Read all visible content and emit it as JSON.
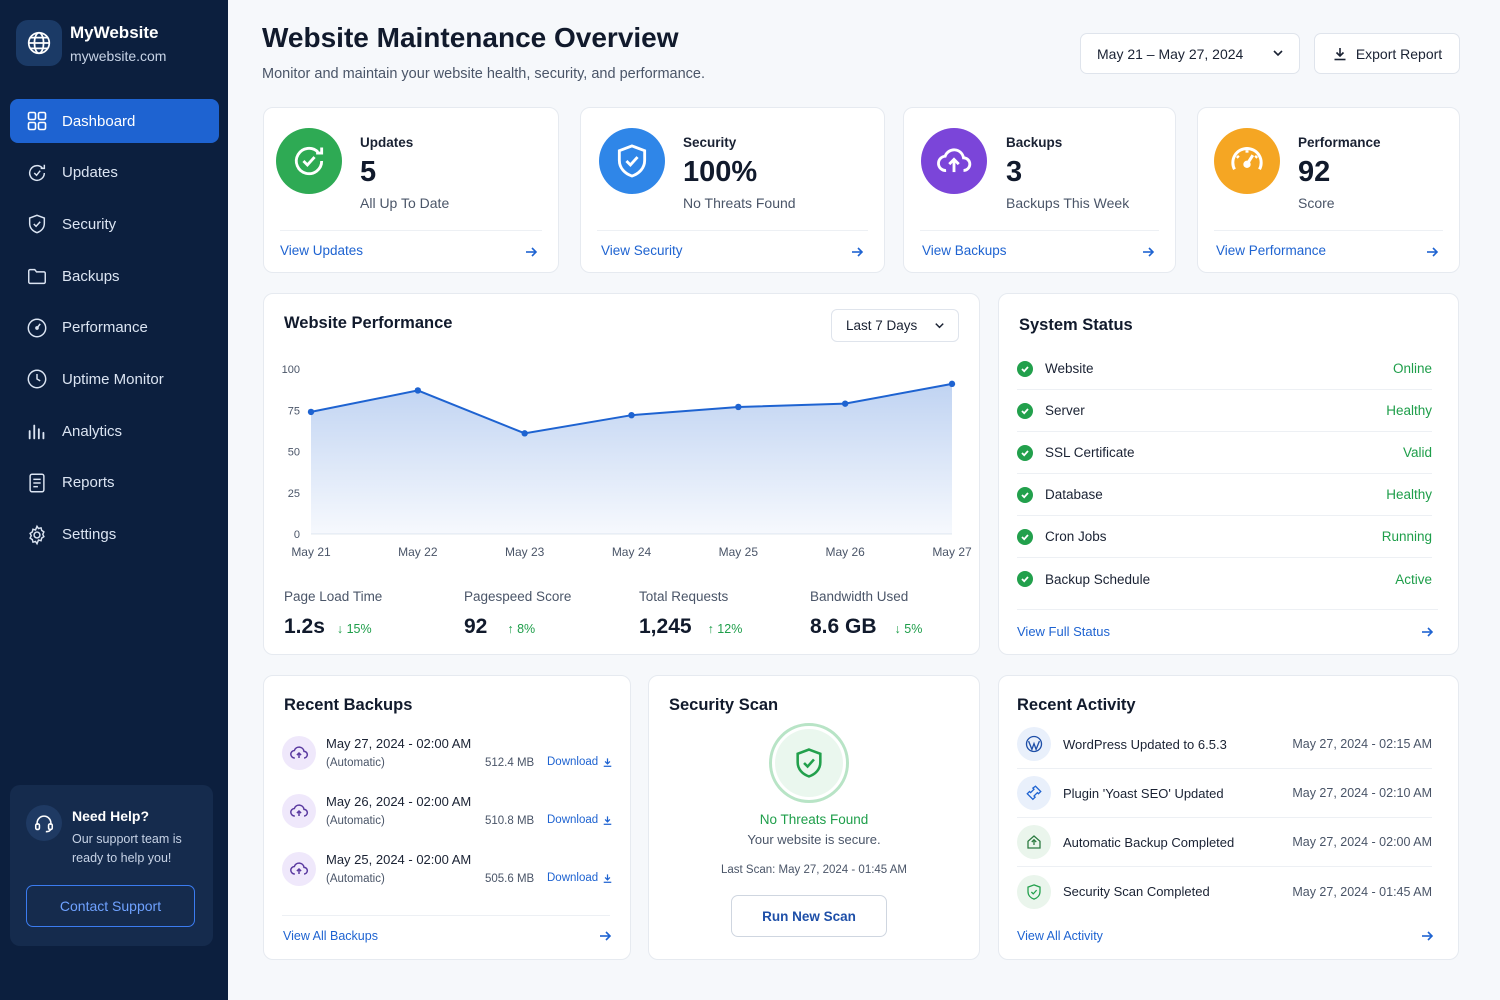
{
  "brand": {
    "name": "MyWebsite",
    "url": "mywebsite.com"
  },
  "sidebar": {
    "items": [
      {
        "label": "Dashboard",
        "icon": "dashboard-icon",
        "active": true
      },
      {
        "label": "Updates",
        "icon": "updates-icon"
      },
      {
        "label": "Security",
        "icon": "shield-icon"
      },
      {
        "label": "Backups",
        "icon": "folder-icon"
      },
      {
        "label": "Performance",
        "icon": "gauge-icon"
      },
      {
        "label": "Uptime Monitor",
        "icon": "clock-icon"
      },
      {
        "label": "Analytics",
        "icon": "bar-chart-icon"
      },
      {
        "label": "Reports",
        "icon": "document-icon"
      },
      {
        "label": "Settings",
        "icon": "gear-icon"
      }
    ],
    "help": {
      "title": "Need Help?",
      "text": "Our support team is ready to help you!",
      "button": "Contact Support"
    }
  },
  "header": {
    "title": "Website Maintenance Overview",
    "subtitle": "Monitor and maintain your website health, security, and performance.",
    "date_range": "May 21 – May 27, 2024",
    "export_label": "Export Report"
  },
  "stats": [
    {
      "label": "Updates",
      "value": "5",
      "sub": "All Up To Date",
      "link": "View Updates",
      "color": "#2eaa54"
    },
    {
      "label": "Security",
      "value": "100%",
      "sub": "No Threats Found",
      "link": "View Security",
      "color": "#2f86e8"
    },
    {
      "label": "Backups",
      "value": "3",
      "sub": "Backups This Week",
      "link": "View Backups",
      "color": "#7b45d9"
    },
    {
      "label": "Performance",
      "value": "92",
      "sub": "Score",
      "link": "View Performance",
      "color": "#f5a623"
    }
  ],
  "performance": {
    "title": "Website Performance",
    "range": "Last 7 Days",
    "metrics": [
      {
        "label": "Page Load Time",
        "value": "1.2s",
        "delta": "15%",
        "direction": "down"
      },
      {
        "label": "Pagespeed Score",
        "value": "92",
        "delta": "8%",
        "direction": "up"
      },
      {
        "label": "Total Requests",
        "value": "1,245",
        "delta": "12%",
        "direction": "up"
      },
      {
        "label": "Bandwidth Used",
        "value": "8.6 GB",
        "delta": "5%",
        "direction": "down"
      }
    ]
  },
  "chart_data": {
    "type": "area",
    "categories": [
      "May 21",
      "May 22",
      "May 23",
      "May 24",
      "May 25",
      "May 26",
      "May 27"
    ],
    "series": [
      {
        "values": [
          74,
          87,
          61,
          72,
          77,
          79,
          91
        ]
      }
    ],
    "yticks": [
      0,
      25,
      50,
      75,
      100
    ],
    "ylim": [
      0,
      100
    ],
    "grid": false,
    "color": "#1e63d1"
  },
  "system_status": {
    "title": "System Status",
    "items": [
      {
        "name": "Website",
        "value": "Online"
      },
      {
        "name": "Server",
        "value": "Healthy"
      },
      {
        "name": "SSL Certificate",
        "value": "Valid"
      },
      {
        "name": "Database",
        "value": "Healthy"
      },
      {
        "name": "Cron Jobs",
        "value": "Running"
      },
      {
        "name": "Backup Schedule",
        "value": "Active"
      }
    ],
    "link": "View Full Status"
  },
  "backups": {
    "title": "Recent Backups",
    "items": [
      {
        "date": "May 27, 2024 - 02:00 AM",
        "type": "(Automatic)",
        "size": "512.4 MB",
        "action": "Download"
      },
      {
        "date": "May 26, 2024 - 02:00 AM",
        "type": "(Automatic)",
        "size": "510.8 MB",
        "action": "Download"
      },
      {
        "date": "May 25, 2024 - 02:00 AM",
        "type": "(Automatic)",
        "size": "505.6 MB",
        "action": "Download"
      }
    ],
    "link": "View All Backups"
  },
  "security_scan": {
    "title": "Security Scan",
    "status": "No Threats Found",
    "message": "Your website is secure.",
    "last_scan": "Last Scan: May 27, 2024 - 01:45 AM",
    "button": "Run New Scan"
  },
  "activity": {
    "title": "Recent Activity",
    "items": [
      {
        "text": "WordPress Updated to 6.5.3",
        "time": "May 27, 2024 - 02:15 AM",
        "icon": "wordpress-icon"
      },
      {
        "text": "Plugin 'Yoast SEO' Updated",
        "time": "May 27, 2024 - 02:10 AM",
        "icon": "plugin-icon"
      },
      {
        "text": "Automatic Backup Completed",
        "time": "May 27, 2024 - 02:00 AM",
        "icon": "backup-icon"
      },
      {
        "text": "Security Scan Completed",
        "time": "May 27, 2024 - 01:45 AM",
        "icon": "shield-check-icon"
      }
    ],
    "link": "View All Activity"
  }
}
